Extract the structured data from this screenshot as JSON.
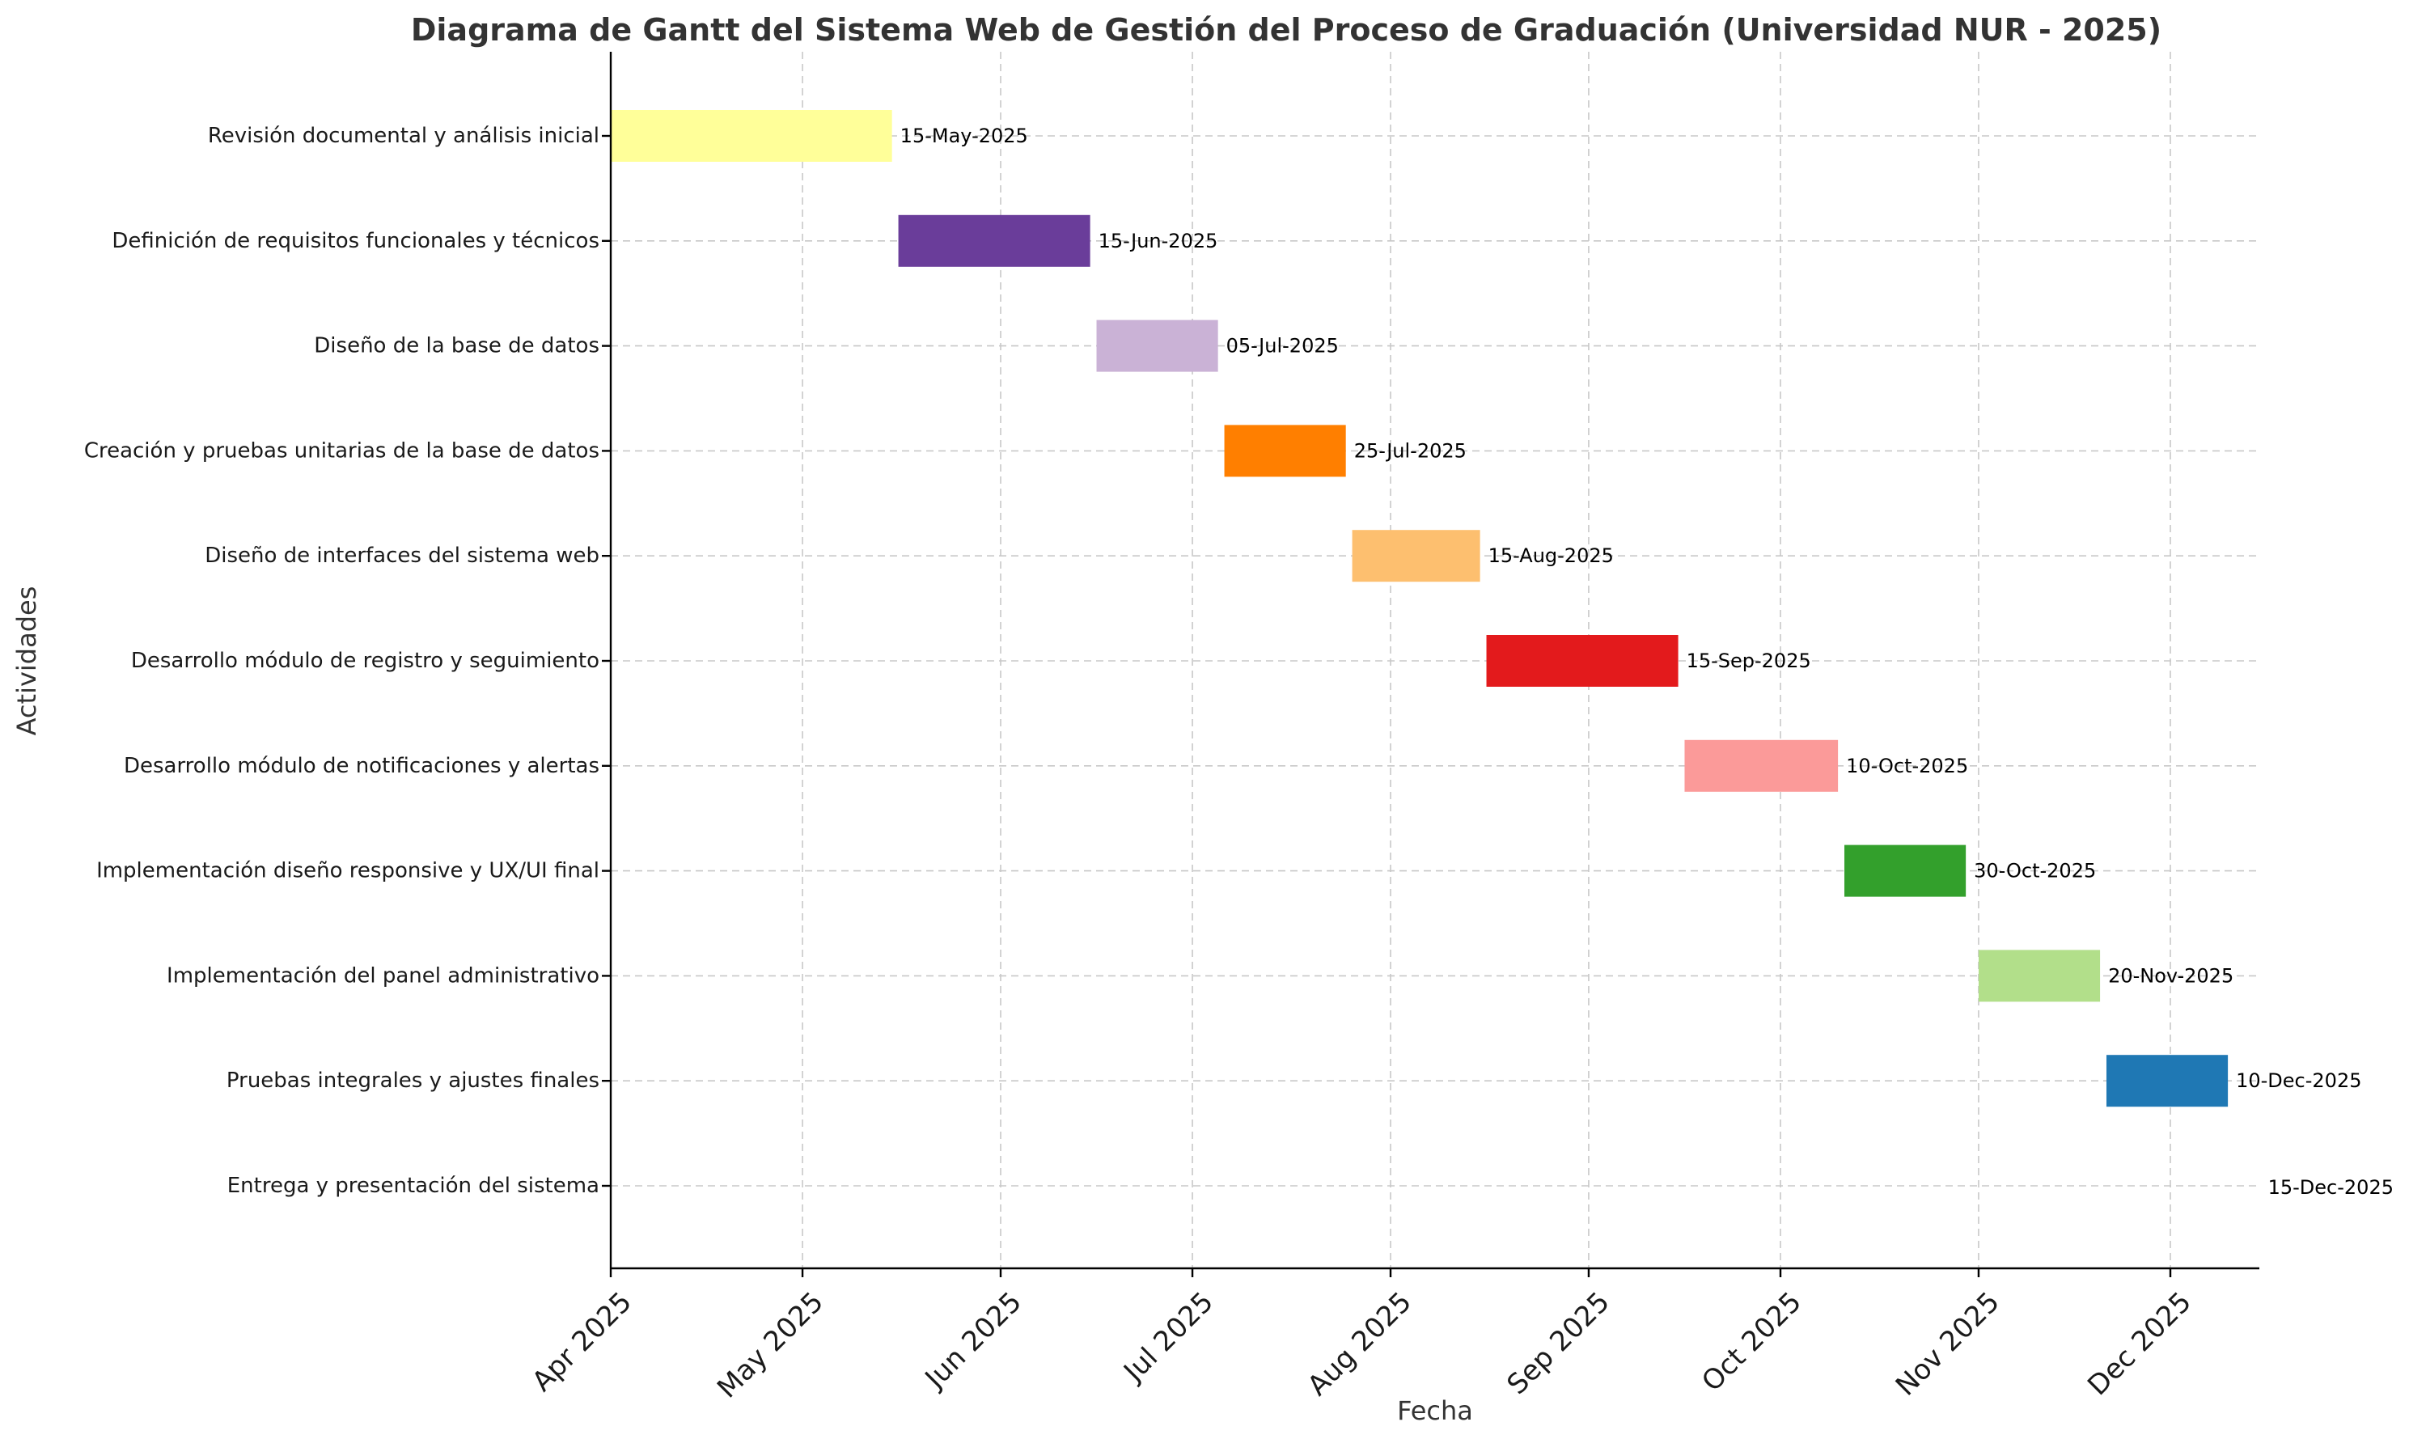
{
  "chart_data": {
    "type": "gantt",
    "title": "Diagrama de Gantt del Sistema Web de Gestión del Proceso de Graduación (Universidad NUR - 2025)",
    "xlabel": "Fecha",
    "ylabel": "Actividades",
    "xlim": [
      "2025-04-01",
      "2025-12-15"
    ],
    "grid": true,
    "x_ticks": [
      {
        "date": "2025-04-01",
        "label": "Apr 2025"
      },
      {
        "date": "2025-05-01",
        "label": "May 2025"
      },
      {
        "date": "2025-06-01",
        "label": "Jun 2025"
      },
      {
        "date": "2025-07-01",
        "label": "Jul 2025"
      },
      {
        "date": "2025-08-01",
        "label": "Aug 2025"
      },
      {
        "date": "2025-09-01",
        "label": "Sep 2025"
      },
      {
        "date": "2025-10-01",
        "label": "Oct 2025"
      },
      {
        "date": "2025-11-01",
        "label": "Nov 2025"
      },
      {
        "date": "2025-12-01",
        "label": "Dec 2025"
      }
    ],
    "tasks": [
      {
        "name": "Revisión documental y análisis inicial",
        "start": "2025-04-01",
        "end": "2025-05-15",
        "end_label": "15-May-2025",
        "color": "#ffff99"
      },
      {
        "name": "Definición de requisitos funcionales y técnicos",
        "start": "2025-05-16",
        "end": "2025-06-15",
        "end_label": "15-Jun-2025",
        "color": "#6a3d9a"
      },
      {
        "name": "Diseño de la base de datos",
        "start": "2025-06-16",
        "end": "2025-07-05",
        "end_label": "05-Jul-2025",
        "color": "#cab2d6"
      },
      {
        "name": "Creación y pruebas unitarias de la base de datos",
        "start": "2025-07-06",
        "end": "2025-07-25",
        "end_label": "25-Jul-2025",
        "color": "#ff7f00"
      },
      {
        "name": "Diseño de interfaces del sistema web",
        "start": "2025-07-26",
        "end": "2025-08-15",
        "end_label": "15-Aug-2025",
        "color": "#fdbf6f"
      },
      {
        "name": "Desarrollo módulo de registro y seguimiento",
        "start": "2025-08-16",
        "end": "2025-09-15",
        "end_label": "15-Sep-2025",
        "color": "#e31a1c"
      },
      {
        "name": "Desarrollo módulo de notificaciones y alertas",
        "start": "2025-09-16",
        "end": "2025-10-10",
        "end_label": "10-Oct-2025",
        "color": "#fb9a99"
      },
      {
        "name": "Implementación diseño responsive y UX/UI final",
        "start": "2025-10-11",
        "end": "2025-10-30",
        "end_label": "30-Oct-2025",
        "color": "#33a02c"
      },
      {
        "name": "Implementación del panel administrativo",
        "start": "2025-11-01",
        "end": "2025-11-20",
        "end_label": "20-Nov-2025",
        "color": "#b2df8a"
      },
      {
        "name": "Pruebas integrales y ajustes finales",
        "start": "2025-11-21",
        "end": "2025-12-10",
        "end_label": "10-Dec-2025",
        "color": "#1f78b4"
      },
      {
        "name": "Entrega y presentación del sistema",
        "start": "2025-12-15",
        "end": "2025-12-15",
        "end_label": "15-Dec-2025",
        "color": "#a6cee3"
      }
    ]
  }
}
